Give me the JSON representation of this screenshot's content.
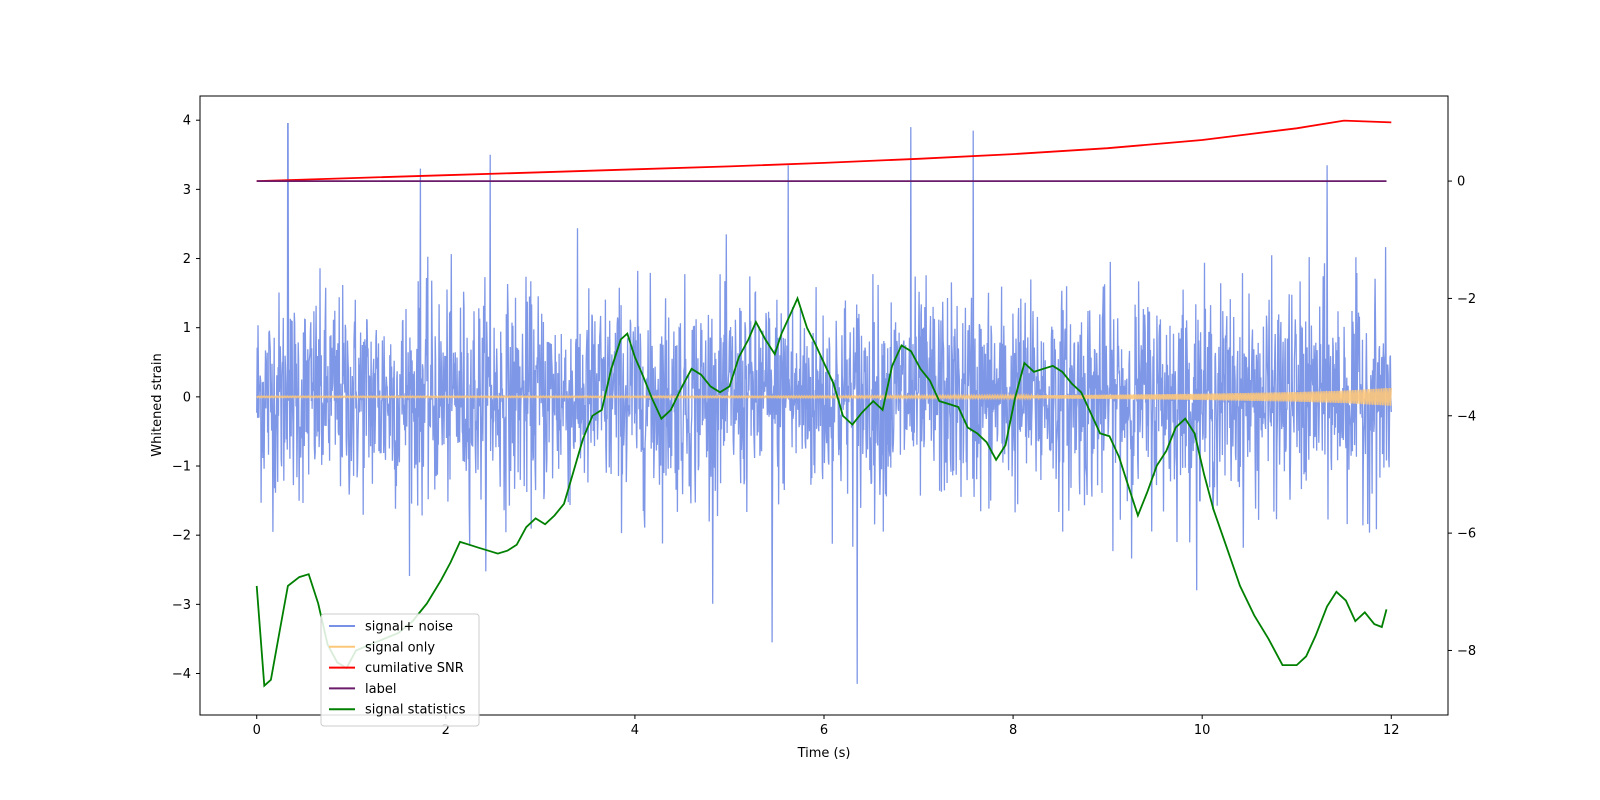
{
  "chart_data": {
    "type": "line",
    "xlabel": "Time (s)",
    "ylabel": "Whitened strain",
    "xlim": [
      -0.6,
      12.6
    ],
    "ylim": [
      -4.6,
      4.35
    ],
    "y2lim": [
      -9.1,
      1.45
    ],
    "x_ticks": [
      "0",
      "2",
      "4",
      "6",
      "8",
      "10",
      "12"
    ],
    "y_ticks": [
      "−4",
      "−3",
      "−2",
      "−1",
      "0",
      "1",
      "2",
      "3",
      "4"
    ],
    "y2_ticks": [
      "−8",
      "−6",
      "−4",
      "−2",
      "0"
    ],
    "legend_placement": "lower-left",
    "series": [
      {
        "name": "signal+ noise",
        "axis": "left",
        "color": "#7891e6",
        "x_range": [
          0,
          12
        ],
        "typical_amplitude": 1.2,
        "peak_x": [
          0.33,
          1.73,
          2.47,
          5.62,
          6.92,
          7.58,
          11.32,
          6.35,
          5.45
        ],
        "peak_y": [
          3.95,
          3.3,
          3.5,
          3.35,
          3.9,
          3.85,
          3.35,
          -4.15,
          -3.55
        ]
      },
      {
        "name": "signal only",
        "axis": "left",
        "color": "#fdc77a",
        "x_range": [
          0,
          12
        ],
        "envelope_x": [
          0,
          2,
          4,
          6,
          8,
          9,
          10,
          11,
          11.5,
          12
        ],
        "envelope_y": [
          0.01,
          0.01,
          0.01,
          0.012,
          0.02,
          0.03,
          0.045,
          0.07,
          0.09,
          0.13
        ]
      },
      {
        "name": "cumilative SNR",
        "axis": "right",
        "color": "#ff0000",
        "x": [
          0,
          1,
          2,
          3,
          4,
          5,
          6,
          7,
          8,
          9,
          10,
          10.5,
          11,
          11.5,
          12
        ],
        "y": [
          0.0,
          0.05,
          0.1,
          0.15,
          0.2,
          0.25,
          0.31,
          0.38,
          0.46,
          0.56,
          0.7,
          0.8,
          0.9,
          1.03,
          1.0
        ]
      },
      {
        "name": "label",
        "axis": "right",
        "color": "#6a1b6a",
        "x": [
          0,
          11.95
        ],
        "y": [
          0,
          0
        ]
      },
      {
        "name": "signal statistics",
        "axis": "right",
        "color": "#008000",
        "x": [
          0,
          0.08,
          0.15,
          0.25,
          0.33,
          0.45,
          0.55,
          0.65,
          0.75,
          0.85,
          0.95,
          1.05,
          1.2,
          1.35,
          1.5,
          1.65,
          1.8,
          1.95,
          2.05,
          2.15,
          2.25,
          2.35,
          2.45,
          2.55,
          2.65,
          2.75,
          2.85,
          2.95,
          3.05,
          3.15,
          3.25,
          3.35,
          3.45,
          3.55,
          3.65,
          3.75,
          3.85,
          3.92,
          4.0,
          4.08,
          4.18,
          4.28,
          4.38,
          4.5,
          4.6,
          4.7,
          4.8,
          4.9,
          5.0,
          5.1,
          5.2,
          5.28,
          5.38,
          5.48,
          5.55,
          5.65,
          5.72,
          5.82,
          5.9,
          6.0,
          6.1,
          6.2,
          6.3,
          6.4,
          6.52,
          6.62,
          6.72,
          6.82,
          6.92,
          7.02,
          7.12,
          7.22,
          7.32,
          7.42,
          7.52,
          7.62,
          7.72,
          7.82,
          7.92,
          8.02,
          8.12,
          8.22,
          8.32,
          8.42,
          8.52,
          8.62,
          8.72,
          8.82,
          8.92,
          9.02,
          9.12,
          9.22,
          9.32,
          9.42,
          9.52,
          9.62,
          9.72,
          9.82,
          9.92,
          10.02,
          10.12,
          10.25,
          10.4,
          10.55,
          10.7,
          10.85,
          11.0,
          11.1,
          11.2,
          11.32,
          11.42,
          11.52,
          11.62,
          11.72,
          11.82,
          11.9,
          11.95
        ],
        "y": [
          -6.9,
          -8.6,
          -8.5,
          -7.6,
          -6.9,
          -6.75,
          -6.7,
          -7.2,
          -7.9,
          -8.2,
          -8.3,
          -8.0,
          -7.9,
          -7.8,
          -7.7,
          -7.5,
          -7.2,
          -6.8,
          -6.5,
          -6.15,
          -6.2,
          -6.25,
          -6.3,
          -6.35,
          -6.3,
          -6.2,
          -5.9,
          -5.75,
          -5.85,
          -5.7,
          -5.5,
          -4.95,
          -4.4,
          -4.0,
          -3.9,
          -3.2,
          -2.7,
          -2.6,
          -3.0,
          -3.3,
          -3.7,
          -4.05,
          -3.9,
          -3.5,
          -3.2,
          -3.3,
          -3.5,
          -3.6,
          -3.5,
          -3.0,
          -2.7,
          -2.4,
          -2.7,
          -2.95,
          -2.6,
          -2.25,
          -2.0,
          -2.5,
          -2.75,
          -3.1,
          -3.45,
          -4.0,
          -4.15,
          -3.95,
          -3.75,
          -3.9,
          -3.15,
          -2.8,
          -2.9,
          -3.2,
          -3.4,
          -3.75,
          -3.8,
          -3.85,
          -4.2,
          -4.3,
          -4.45,
          -4.75,
          -4.5,
          -3.7,
          -3.1,
          -3.25,
          -3.2,
          -3.15,
          -3.25,
          -3.45,
          -3.6,
          -3.95,
          -4.3,
          -4.35,
          -4.7,
          -5.2,
          -5.7,
          -5.3,
          -4.85,
          -4.6,
          -4.2,
          -4.05,
          -4.3,
          -5.0,
          -5.6,
          -6.2,
          -6.9,
          -7.4,
          -7.8,
          -8.25,
          -8.25,
          -8.1,
          -7.75,
          -7.25,
          -7.0,
          -7.15,
          -7.5,
          -7.35,
          -7.55,
          -7.6,
          -7.3
        ]
      }
    ]
  }
}
